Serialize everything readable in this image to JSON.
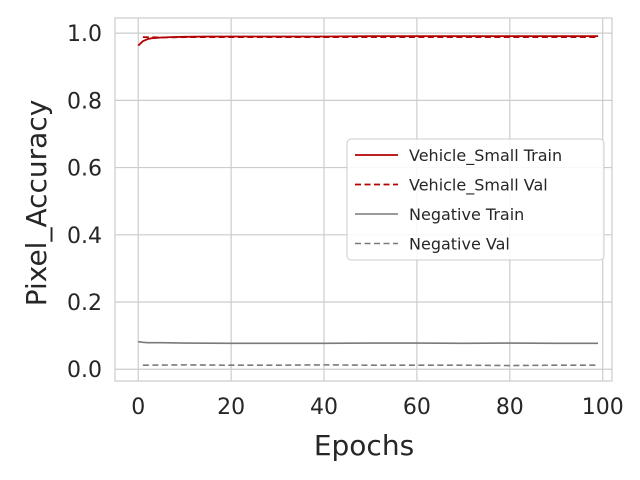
{
  "chart_data": {
    "type": "line",
    "title": "",
    "xlabel": "Epochs",
    "ylabel": "Pixel_Accuracy",
    "xlim": [
      -5,
      102
    ],
    "ylim": [
      -0.035,
      1.045
    ],
    "grid": true,
    "legend_position": "center-right",
    "x_ticks": [
      {
        "value": 0,
        "label": "0"
      },
      {
        "value": 20,
        "label": "20"
      },
      {
        "value": 40,
        "label": "40"
      },
      {
        "value": 60,
        "label": "60"
      },
      {
        "value": 80,
        "label": "80"
      },
      {
        "value": 100,
        "label": "100"
      }
    ],
    "y_ticks": [
      {
        "value": 0.0,
        "label": "0.0"
      },
      {
        "value": 0.2,
        "label": "0.2"
      },
      {
        "value": 0.4,
        "label": "0.4"
      },
      {
        "value": 0.6,
        "label": "0.6"
      },
      {
        "value": 0.8,
        "label": "0.8"
      },
      {
        "value": 1.0,
        "label": "1.0"
      }
    ],
    "series": [
      {
        "name": "Vehicle_Small Train",
        "color": "#b30000",
        "dash": "solid",
        "x": [
          0,
          1,
          2,
          3,
          5,
          7,
          10,
          15,
          20,
          30,
          40,
          50,
          60,
          70,
          80,
          90,
          99
        ],
        "y": [
          0.963,
          0.976,
          0.982,
          0.985,
          0.987,
          0.988,
          0.989,
          0.99,
          0.99,
          0.99,
          0.99,
          0.991,
          0.991,
          0.991,
          0.991,
          0.991,
          0.991
        ]
      },
      {
        "name": "Vehicle_Small Val",
        "color": "#b30000",
        "dash": "dashed",
        "x": [
          1,
          5,
          10,
          20,
          30,
          40,
          50,
          60,
          70,
          80,
          90,
          99
        ],
        "y": [
          0.988,
          0.987,
          0.988,
          0.988,
          0.988,
          0.988,
          0.988,
          0.988,
          0.988,
          0.988,
          0.988,
          0.988
        ]
      },
      {
        "name": "Negative Train",
        "color": "#7a7a7a",
        "dash": "solid",
        "x": [
          0,
          1,
          2,
          5,
          10,
          20,
          30,
          40,
          50,
          60,
          70,
          80,
          90,
          99
        ],
        "y": [
          0.082,
          0.08,
          0.079,
          0.079,
          0.078,
          0.077,
          0.077,
          0.077,
          0.078,
          0.078,
          0.077,
          0.078,
          0.077,
          0.077
        ]
      },
      {
        "name": "Negative Val",
        "color": "#7a7a7a",
        "dash": "dashed",
        "x": [
          1,
          10,
          20,
          30,
          40,
          50,
          60,
          70,
          80,
          90,
          99
        ],
        "y": [
          0.012,
          0.013,
          0.012,
          0.012,
          0.013,
          0.012,
          0.012,
          0.012,
          0.011,
          0.012,
          0.012
        ]
      }
    ]
  }
}
